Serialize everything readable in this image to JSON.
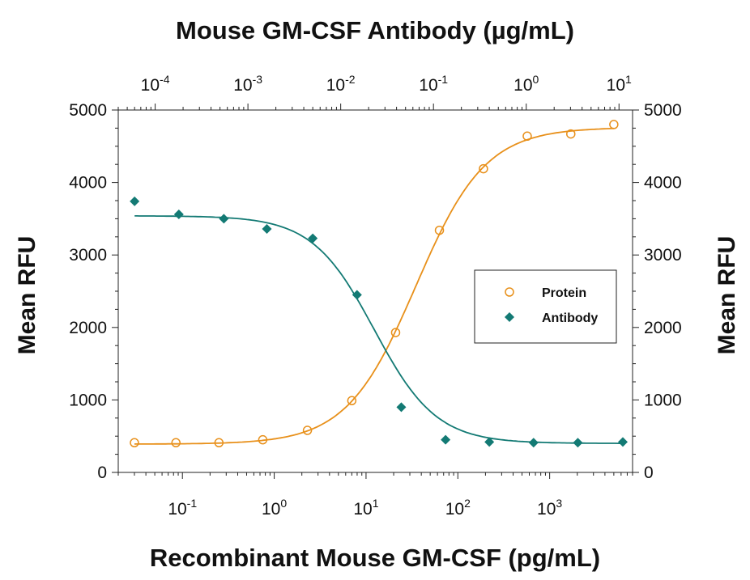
{
  "chart_data": {
    "type": "scatter",
    "title_top_axis": "Mouse GM-CSF Antibody (µg/mL)",
    "xlabel": "Recombinant Mouse GM-CSF (pg/mL)",
    "ylabel_left": "Mean RFU",
    "ylabel_right": "Mean RFU",
    "x_scale": "log",
    "x_range": [
      0.02,
      8000
    ],
    "x_tick_base": "10",
    "x_ticks": [
      {
        "value": 0.1,
        "exp": "-1"
      },
      {
        "value": 1,
        "exp": "0"
      },
      {
        "value": 10,
        "exp": "1"
      },
      {
        "value": 100,
        "exp": "2"
      },
      {
        "value": 1000,
        "exp": "3"
      }
    ],
    "top_axis_scale": "log",
    "top_axis_range": [
      4e-05,
      14
    ],
    "top_ticks": [
      {
        "value": 0.0001,
        "exp": "-4"
      },
      {
        "value": 0.001,
        "exp": "-3"
      },
      {
        "value": 0.01,
        "exp": "-2"
      },
      {
        "value": 0.1,
        "exp": "-1"
      },
      {
        "value": 1,
        "exp": "0"
      },
      {
        "value": 10,
        "exp": "1"
      }
    ],
    "ylim": [
      0,
      5000
    ],
    "y_ticks": [
      "0",
      "1000",
      "2000",
      "3000",
      "4000",
      "5000"
    ],
    "legend_position": "center-right",
    "series": [
      {
        "name": "Protein",
        "axis": "bottom",
        "marker": "open-circle",
        "color": "#E8901A",
        "x": [
          0.03,
          0.085,
          0.25,
          0.75,
          2.3,
          7,
          21,
          63,
          190,
          570,
          1700,
          5000
        ],
        "y": [
          410,
          410,
          410,
          450,
          580,
          990,
          1930,
          3340,
          4190,
          4640,
          4670,
          4800
        ],
        "fit": {
          "bottom": 390,
          "top": 4760,
          "ec50": 35,
          "hill": 1.15
        }
      },
      {
        "name": "Antibody",
        "axis": "top",
        "marker": "filled-diamond",
        "color": "#137A74",
        "x": [
          6e-05,
          0.00018,
          0.00055,
          0.0016,
          0.005,
          0.015,
          0.045,
          0.135,
          0.4,
          1.2,
          3.6,
          11
        ],
        "y": [
          3740,
          3560,
          3500,
          3360,
          3230,
          2450,
          900,
          450,
          420,
          410,
          410,
          420
        ],
        "fit": {
          "bottom": 400,
          "top": 3540,
          "ec50": 0.023,
          "hill": -1.3
        }
      }
    ]
  }
}
